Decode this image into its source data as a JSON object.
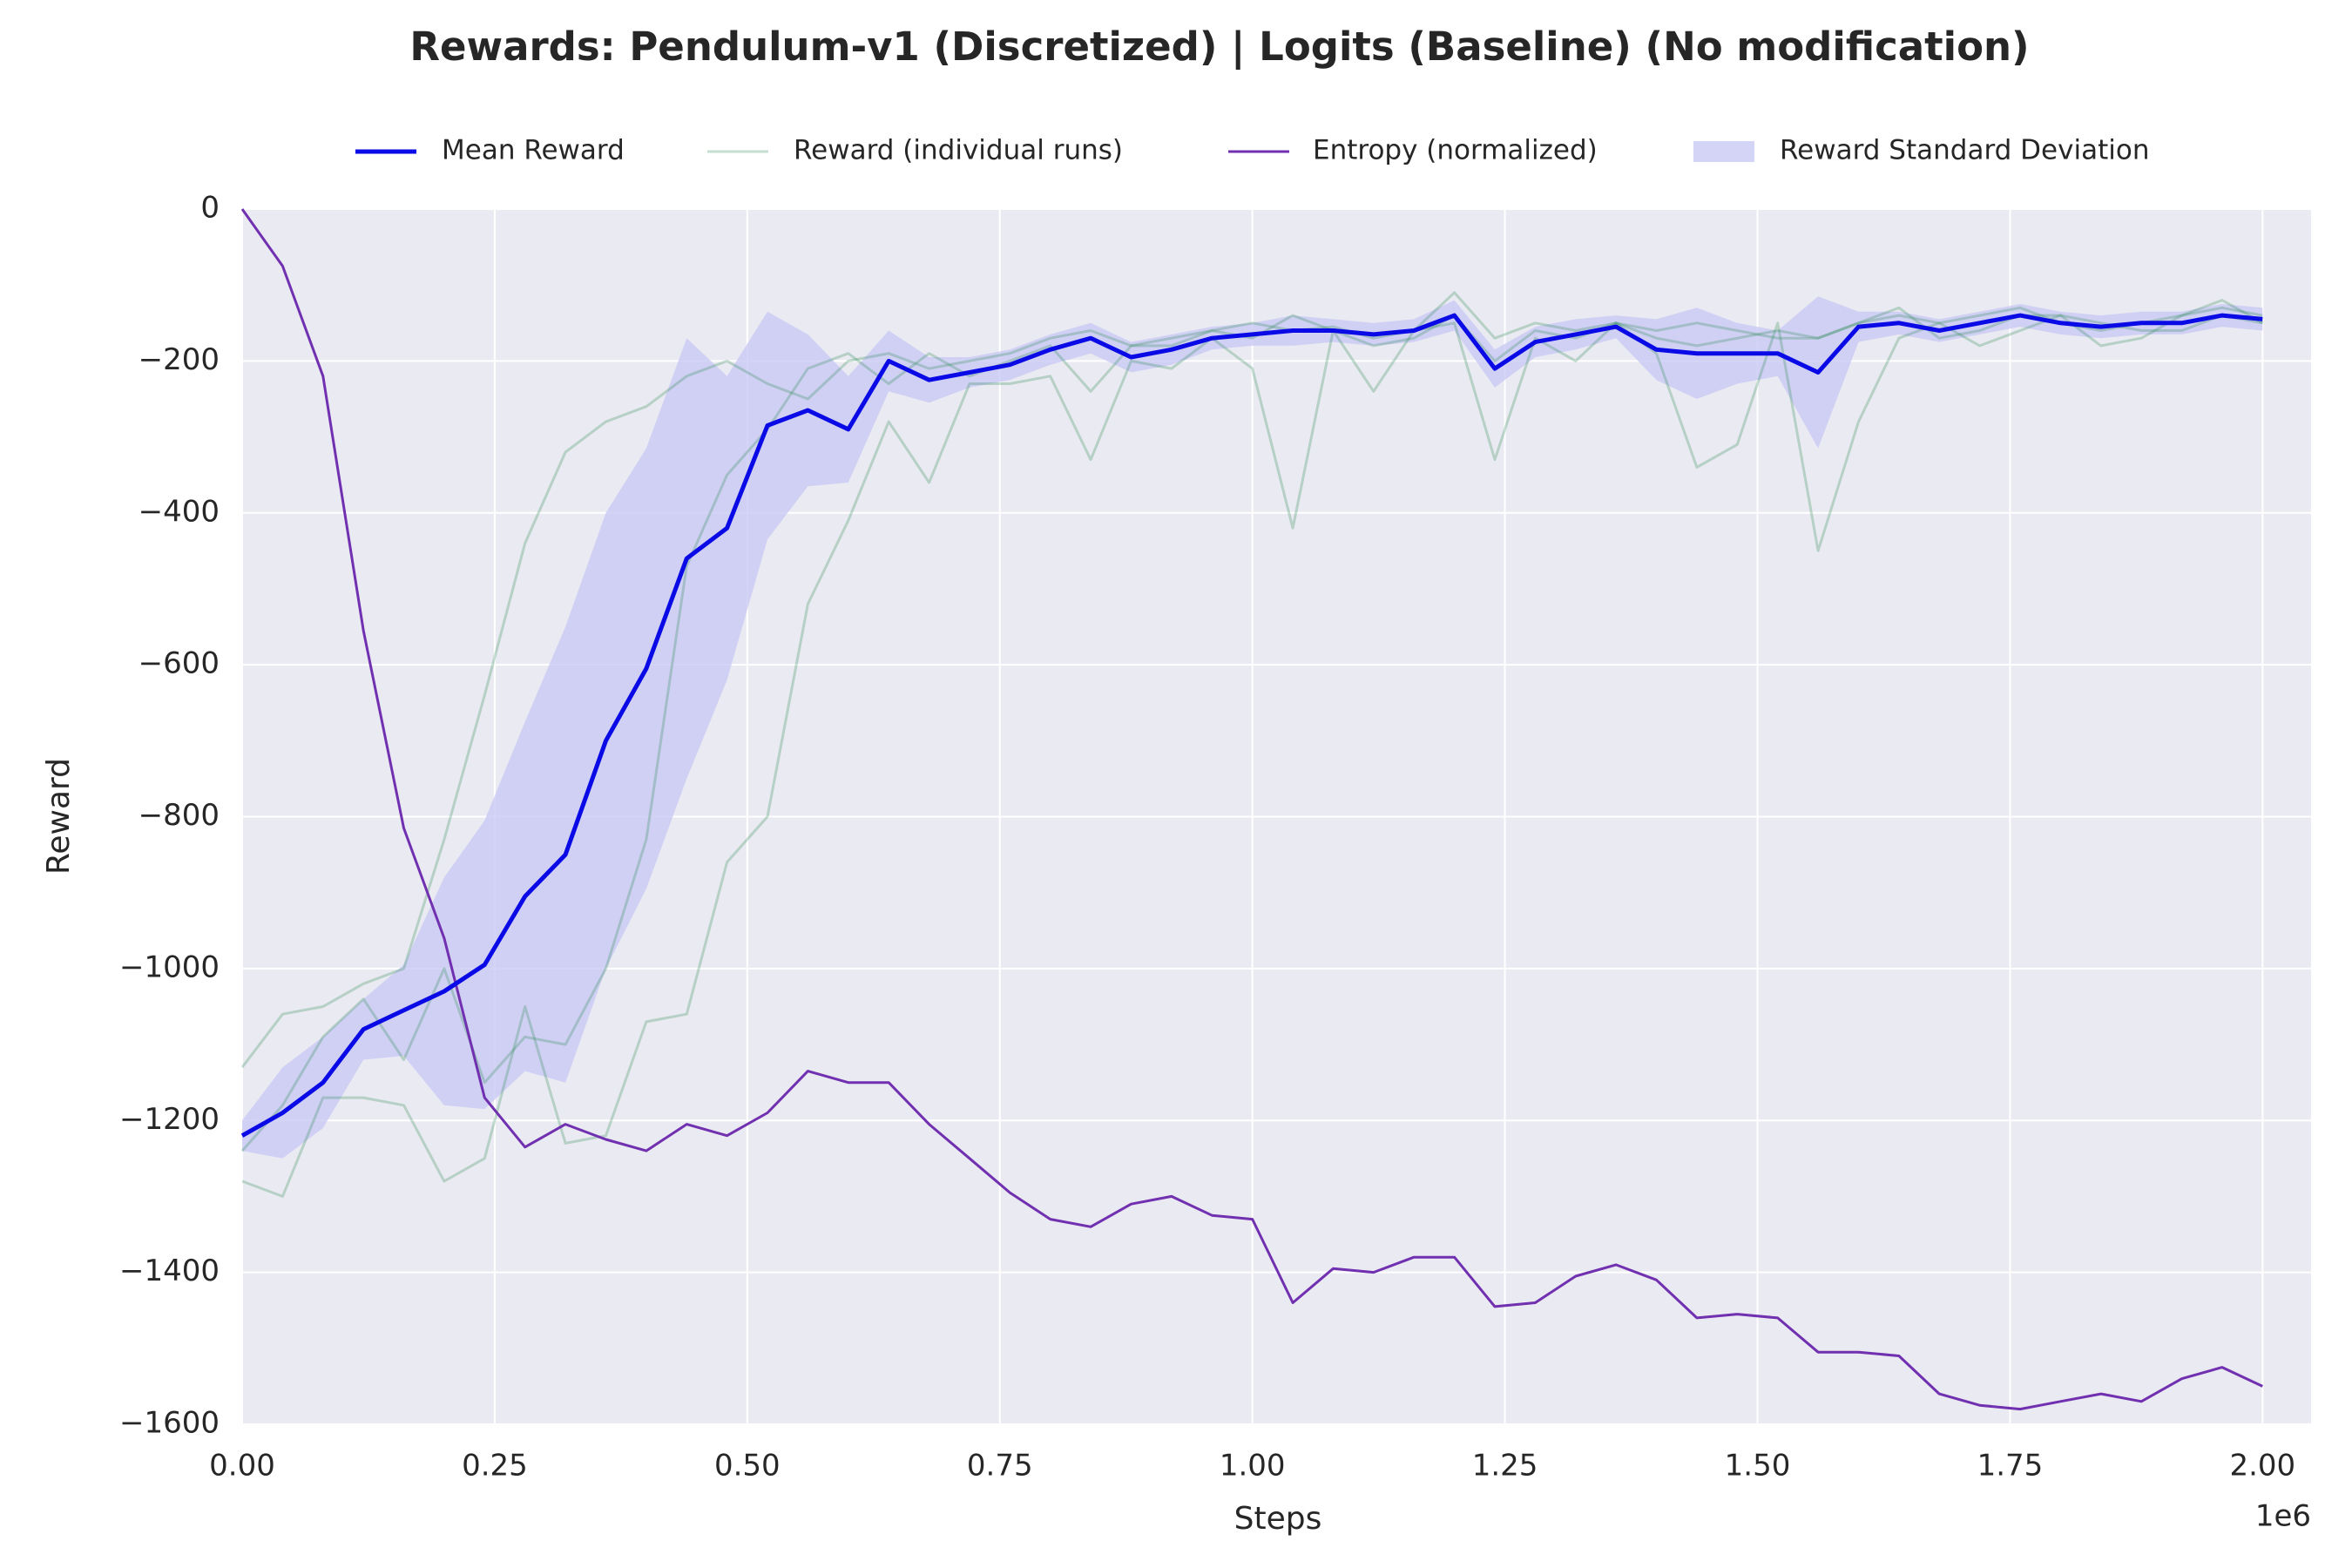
{
  "chart_data": {
    "type": "line",
    "title": "Rewards: Pendulum-v1 (Discretized) | Logits (Baseline) (No modification)",
    "xlabel": "Steps",
    "ylabel": "Reward",
    "x_offset_label": "1e6",
    "x": [
      0,
      40000,
      80000,
      120000,
      160000,
      200000,
      240000,
      280000,
      320000,
      360000,
      400000,
      440000,
      480000,
      520000,
      560000,
      600000,
      640000,
      680000,
      720000,
      760000,
      800000,
      840000,
      880000,
      920000,
      960000,
      1000000,
      1040000,
      1080000,
      1120000,
      1160000,
      1200000,
      1240000,
      1280000,
      1320000,
      1360000,
      1400000,
      1440000,
      1480000,
      1520000,
      1560000,
      1600000,
      1640000,
      1680000,
      1720000,
      1760000,
      1800000,
      1840000,
      1880000,
      1920000,
      1960000,
      2000000
    ],
    "series": [
      {
        "name": "Mean Reward",
        "color": "#0a0ae6",
        "values": [
          -1220,
          -1190,
          -1150,
          -1080,
          -1055,
          -1030,
          -995,
          -905,
          -850,
          -700,
          -605,
          -460,
          -420,
          -285,
          -265,
          -290,
          -200,
          -225,
          -215,
          -205,
          -185,
          -170,
          -195,
          -185,
          -170,
          -165,
          -160,
          -160,
          -165,
          -160,
          -140,
          -210,
          -175,
          -165,
          -155,
          -185,
          -190,
          -190,
          -190,
          -215,
          -155,
          -150,
          -160,
          -150,
          -140,
          -150,
          -155,
          -150,
          -150,
          -140,
          -145
        ]
      },
      {
        "name": "Entropy (normalized)",
        "color": "#7030b0",
        "values": [
          0,
          -75,
          -220,
          -555,
          -815,
          -960,
          -1170,
          -1235,
          -1205,
          -1225,
          -1240,
          -1205,
          -1220,
          -1190,
          -1135,
          -1150,
          -1150,
          -1205,
          -1250,
          -1295,
          -1330,
          -1340,
          -1310,
          -1300,
          -1325,
          -1330,
          -1440,
          -1395,
          -1400,
          -1380,
          -1380,
          -1445,
          -1440,
          -1405,
          -1390,
          -1410,
          -1460,
          -1455,
          -1460,
          -1505,
          -1505,
          -1510,
          -1560,
          -1575,
          -1580,
          -1570,
          -1560,
          -1570,
          -1540,
          -1525,
          -1550
        ]
      }
    ],
    "runs": {
      "name": "Reward (individual runs)",
      "color": "#2e8b57",
      "values": [
        [
          -1130,
          -1060,
          -1050,
          -1020,
          -1000,
          -830,
          -640,
          -440,
          -320,
          -280,
          -260,
          -220,
          -200,
          -230,
          -250,
          -200,
          -190,
          -210,
          -200,
          -190,
          -170,
          -160,
          -180,
          -170,
          -160,
          -150,
          -160,
          -155,
          -170,
          -160,
          -110,
          -170,
          -150,
          -160,
          -150,
          -170,
          -180,
          -170,
          -160,
          -170,
          -150,
          -140,
          -150,
          -140,
          -130,
          -150,
          -160,
          -150,
          -140,
          -130,
          -140
        ],
        [
          -1280,
          -1300,
          -1170,
          -1170,
          -1180,
          -1280,
          -1250,
          -1050,
          -1230,
          -1220,
          -1070,
          -1060,
          -860,
          -800,
          -520,
          -410,
          -280,
          -360,
          -230,
          -230,
          -220,
          -330,
          -200,
          -210,
          -170,
          -210,
          -420,
          -160,
          -240,
          -160,
          -150,
          -330,
          -170,
          -200,
          -150,
          -190,
          -340,
          -310,
          -150,
          -450,
          -280,
          -170,
          -150,
          -180,
          -160,
          -140,
          -180,
          -170,
          -140,
          -120,
          -150
        ],
        [
          -1240,
          -1180,
          -1090,
          -1040,
          -1120,
          -1000,
          -1150,
          -1090,
          -1100,
          -1000,
          -830,
          -470,
          -350,
          -290,
          -210,
          -190,
          -230,
          -190,
          -220,
          -200,
          -180,
          -240,
          -180,
          -180,
          -160,
          -170,
          -140,
          -160,
          -180,
          -170,
          -140,
          -200,
          -160,
          -170,
          -150,
          -160,
          -150,
          -160,
          -170,
          -170,
          -150,
          -130,
          -170,
          -160,
          -140,
          -140,
          -150,
          -160,
          -160,
          -140,
          -150
        ]
      ]
    },
    "band": {
      "name": "Reward Standard Deviation",
      "color": "#c9c9f4",
      "values": [
        20,
        60,
        60,
        40,
        60,
        150,
        190,
        230,
        300,
        300,
        290,
        290,
        200,
        150,
        100,
        70,
        40,
        30,
        20,
        20,
        20,
        20,
        20,
        20,
        15,
        15,
        20,
        15,
        15,
        15,
        20,
        25,
        20,
        20,
        15,
        40,
        60,
        40,
        30,
        100,
        20,
        15,
        15,
        15,
        15,
        15,
        15,
        15,
        15,
        15,
        15
      ]
    },
    "xlim": [
      0,
      2048000
    ],
    "ylim": [
      -1600,
      0
    ],
    "xticks": [
      {
        "value": 0,
        "label": "0.00"
      },
      {
        "value": 250000,
        "label": "0.25"
      },
      {
        "value": 500000,
        "label": "0.50"
      },
      {
        "value": 750000,
        "label": "0.75"
      },
      {
        "value": 1000000,
        "label": "1.00"
      },
      {
        "value": 1250000,
        "label": "1.25"
      },
      {
        "value": 1500000,
        "label": "1.50"
      },
      {
        "value": 1750000,
        "label": "1.75"
      },
      {
        "value": 2000000,
        "label": "2.00"
      }
    ],
    "yticks": [
      {
        "value": -1600,
        "label": "−1600"
      },
      {
        "value": -1400,
        "label": "−1400"
      },
      {
        "value": -1200,
        "label": "−1200"
      },
      {
        "value": -1000,
        "label": "−1000"
      },
      {
        "value": -800,
        "label": "−800"
      },
      {
        "value": -600,
        "label": "−600"
      },
      {
        "value": -400,
        "label": "−400"
      },
      {
        "value": -200,
        "label": "−200"
      },
      0
    ],
    "grid": true
  }
}
